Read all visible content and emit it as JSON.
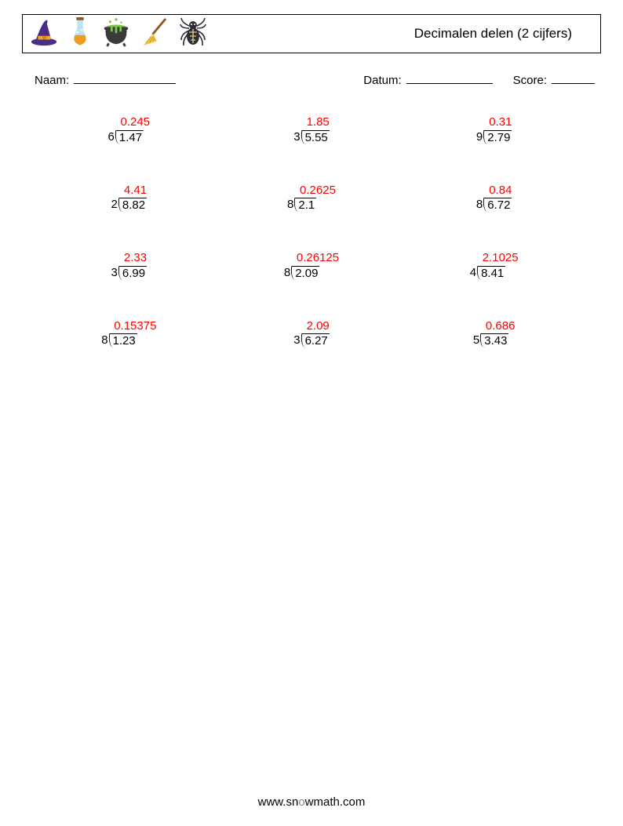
{
  "header": {
    "title": "Decimalen delen (2 cijfers)",
    "icons": [
      "witch-hat-icon",
      "potion-flask-icon",
      "cauldron-icon",
      "broom-icon",
      "spider-icon"
    ]
  },
  "meta": {
    "name_label": "Naam:",
    "date_label": "Datum:",
    "score_label": "Score:"
  },
  "colors": {
    "answer": "#ff0000",
    "text": "#000000",
    "background": "#ffffff"
  },
  "font": {
    "family": "Arial",
    "title_size_pt": 13,
    "body_size_pt": 11
  },
  "grid": {
    "rows": 4,
    "cols": 3
  },
  "problems": [
    {
      "divisor": "6",
      "dividend": "1.47",
      "quotient": "0.245"
    },
    {
      "divisor": "3",
      "dividend": "5.55",
      "quotient": "1.85"
    },
    {
      "divisor": "9",
      "dividend": "2.79",
      "quotient": "0.31"
    },
    {
      "divisor": "2",
      "dividend": "8.82",
      "quotient": "4.41"
    },
    {
      "divisor": "8",
      "dividend": "2.1",
      "quotient": "0.2625"
    },
    {
      "divisor": "8",
      "dividend": "6.72",
      "quotient": "0.84"
    },
    {
      "divisor": "3",
      "dividend": "6.99",
      "quotient": "2.33"
    },
    {
      "divisor": "8",
      "dividend": "2.09",
      "quotient": "0.26125"
    },
    {
      "divisor": "4",
      "dividend": "8.41",
      "quotient": "2.1025"
    },
    {
      "divisor": "8",
      "dividend": "1.23",
      "quotient": "0.15375"
    },
    {
      "divisor": "3",
      "dividend": "6.27",
      "quotient": "2.09"
    },
    {
      "divisor": "5",
      "dividend": "3.43",
      "quotient": "0.686"
    }
  ],
  "footer": {
    "text_plain": "www.snowmath.com",
    "prefix": "www.sn",
    "o": "o",
    "suffix": "wmath.com"
  }
}
